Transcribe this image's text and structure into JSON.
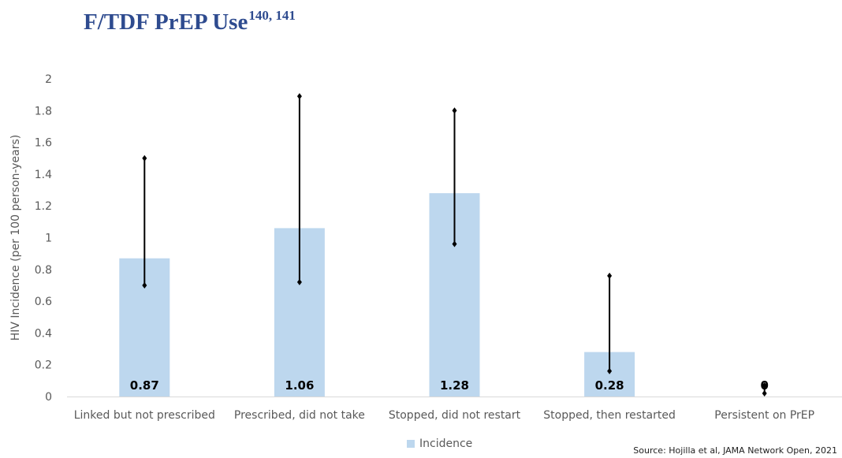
{
  "title": {
    "text": "F/TDF PrEP Use",
    "superscript": "140, 141"
  },
  "source": "Source: Hojilla et al, JAMA Network Open, 2021",
  "colors": {
    "title": "#2e4b8f",
    "bar": "#bdd7ee",
    "error_bar": "#000000",
    "axis_text": "#595959"
  },
  "chart_data": {
    "type": "bar",
    "title": "",
    "xlabel": "",
    "ylabel": "HIV Incidence (per 100 person-years)",
    "ylim": [
      0,
      2
    ],
    "yticks": [
      "0",
      "0.2",
      "0.4",
      "0.6",
      "0.8",
      "1",
      "1.2",
      "1.4",
      "1.6",
      "1.8",
      "2"
    ],
    "grid": false,
    "legend_position": "bottom",
    "categories": [
      "Linked but not prescribed",
      "Prescribed, did not take",
      "Stopped, did not restart",
      "Stopped, then restarted",
      "Persistent on PrEP"
    ],
    "series": [
      {
        "name": "Incidence",
        "values": [
          0.87,
          1.06,
          1.28,
          0.28,
          0
        ],
        "data_labels": [
          "0.87",
          "1.06",
          "1.28",
          "0.28",
          "0"
        ],
        "error_low": [
          0.7,
          0.72,
          0.96,
          0.16,
          0.02
        ],
        "error_high": [
          1.5,
          1.89,
          1.8,
          0.76,
          0.07
        ]
      }
    ]
  }
}
